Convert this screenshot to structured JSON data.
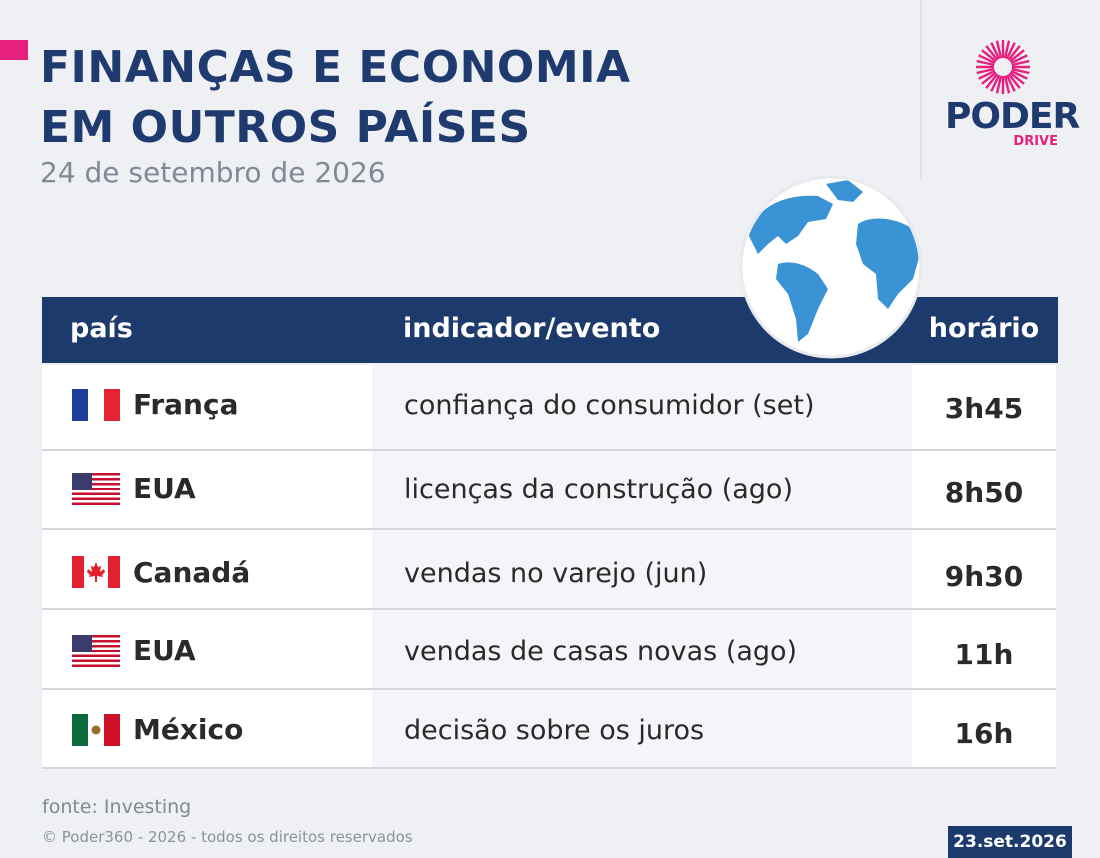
{
  "header": {
    "title_lines": [
      "FINANÇAS E ECONOMIA",
      "EM OUTROS PAÍSES"
    ],
    "date": "24 de setembro de 2026"
  },
  "logo": {
    "name": "PODER",
    "sub": "DRIVE"
  },
  "table": {
    "columns": [
      "país",
      "indicador/evento",
      "horário"
    ],
    "rows": [
      [
        "França",
        "confiança do consumidor (set)",
        "3h45"
      ],
      [
        "EUA",
        "licenças da construção (ago)",
        "8h50"
      ],
      [
        "Canadá",
        "vendas no varejo (jun)",
        "9h30"
      ],
      [
        "EUA",
        "vendas de casas novas (ago)",
        "11h"
      ],
      [
        "México",
        "decisão sobre os juros",
        "16h"
      ]
    ]
  },
  "footer": {
    "source": "fonte: Investing",
    "copyright": "© Poder360 - 2026 - todos os direitos reservados",
    "badge": "23.set.2026"
  }
}
